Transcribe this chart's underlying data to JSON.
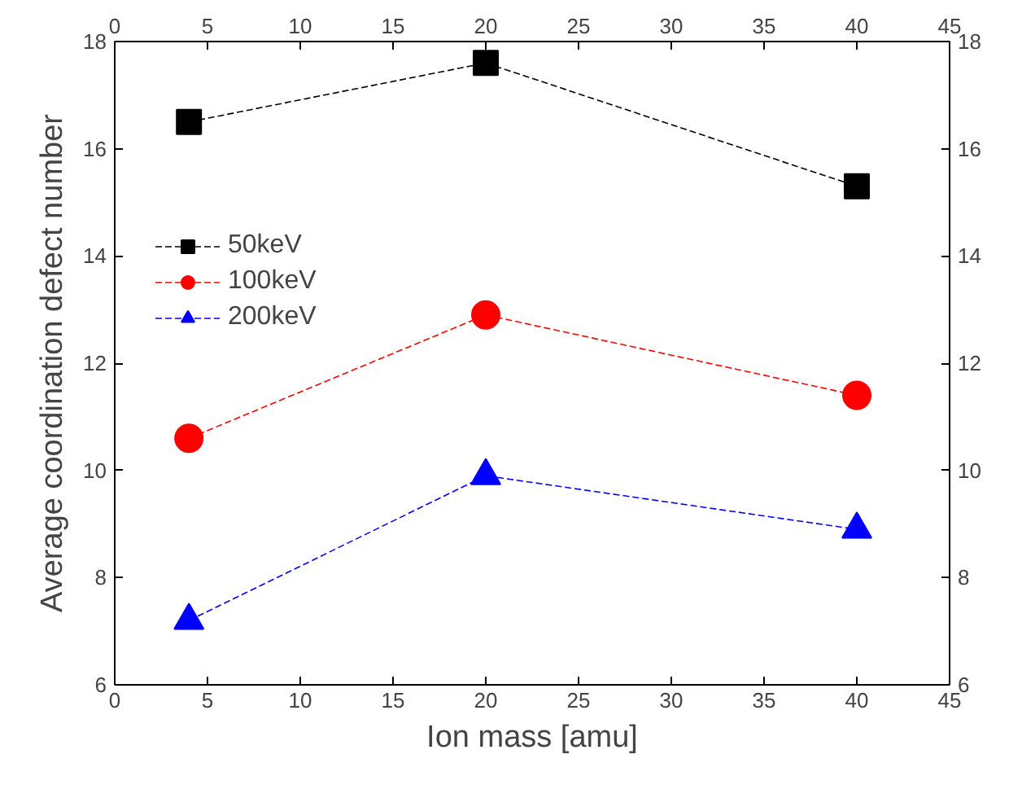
{
  "chart_data": {
    "type": "line",
    "xlabel": "Ion mass [amu]",
    "ylabel": "Average coordination defect number",
    "x": [
      4,
      20,
      40
    ],
    "series": [
      {
        "name": "50keV",
        "color": "#000000",
        "marker": "square",
        "values": [
          16.5,
          17.6,
          15.3
        ]
      },
      {
        "name": "100keV",
        "color": "#ff0000",
        "marker": "circle",
        "values": [
          10.6,
          12.9,
          11.4
        ]
      },
      {
        "name": "200keV",
        "color": "#0000ff",
        "marker": "triangle",
        "values": [
          7.2,
          9.9,
          8.9
        ]
      }
    ],
    "xlim": [
      0,
      45
    ],
    "xticks": [
      0,
      5,
      10,
      15,
      20,
      25,
      30,
      35,
      40,
      45
    ],
    "x2lim": [
      0,
      45
    ],
    "x2ticks": [
      0,
      5,
      10,
      15,
      20,
      25,
      30,
      35,
      40,
      45
    ],
    "ylim": [
      6,
      18
    ],
    "yticks": [
      6,
      8,
      10,
      12,
      14,
      16,
      18
    ],
    "y2lim": [
      6,
      18
    ],
    "y2ticks": [
      6,
      8,
      10,
      12,
      14,
      16,
      18
    ],
    "line_style": "dashed",
    "grid": false,
    "legend": "top left"
  }
}
